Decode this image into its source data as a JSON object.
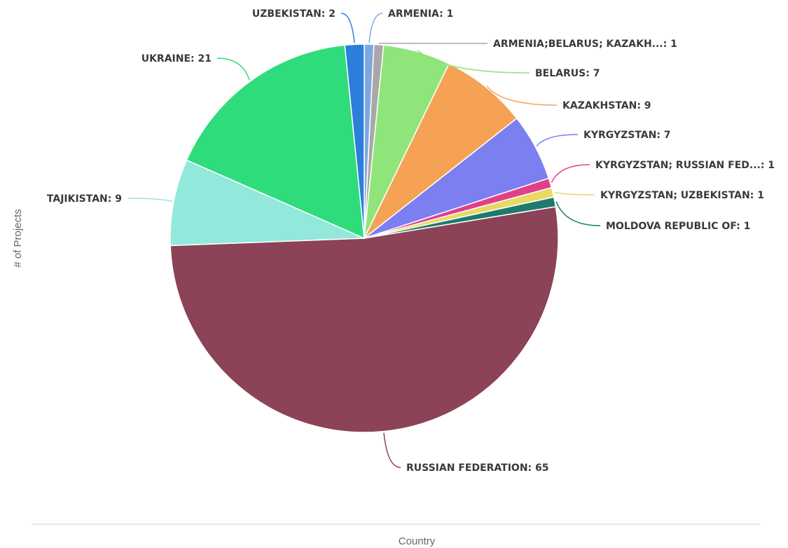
{
  "chart_data": {
    "type": "pie",
    "xlabel": "Country",
    "ylabel": "# of Projects",
    "slices": [
      {
        "name": "ARMENIA",
        "value": 1,
        "color": "#7fa8df"
      },
      {
        "name": "ARMENIA;BELARUS; KAZAKH...",
        "value": 1,
        "color": "#a8a8a8"
      },
      {
        "name": "BELARUS",
        "value": 7,
        "color": "#8fe57a"
      },
      {
        "name": "KAZAKHSTAN",
        "value": 9,
        "color": "#f5a255"
      },
      {
        "name": "KYRGYZSTAN",
        "value": 7,
        "color": "#7b7ff0"
      },
      {
        "name": "KYRGYZSTAN; RUSSIAN FED...",
        "value": 1,
        "color": "#e0408a"
      },
      {
        "name": "KYRGYZSTAN; UZBEKISTAN",
        "value": 1,
        "color": "#e8d966"
      },
      {
        "name": "MOLDOVA REPUBLIC OF",
        "value": 1,
        "color": "#1e7a6c"
      },
      {
        "name": "RUSSIAN FEDERATION",
        "value": 65,
        "color": "#8c4257"
      },
      {
        "name": "TAJIKISTAN",
        "value": 9,
        "color": "#93e8dc"
      },
      {
        "name": "UKRAINE",
        "value": 21,
        "color": "#2fdc7c"
      },
      {
        "name": "UZBEKISTAN",
        "value": 2,
        "color": "#2b7fd9"
      }
    ],
    "label_text": [
      "ARMENIA: 1",
      "ARMENIA;BELARUS; KAZAKH...: 1",
      "BELARUS: 7",
      "KAZAKHSTAN: 9",
      "KYRGYZSTAN: 7",
      "KYRGYZSTAN; RUSSIAN FED...: 1",
      "KYRGYZSTAN; UZBEKISTAN: 1",
      "MOLDOVA REPUBLIC OF: 1",
      "RUSSIAN FEDERATION: 65",
      "TAJIKISTAN: 9",
      "UKRAINE: 21",
      "UZBEKISTAN: 2"
    ]
  }
}
